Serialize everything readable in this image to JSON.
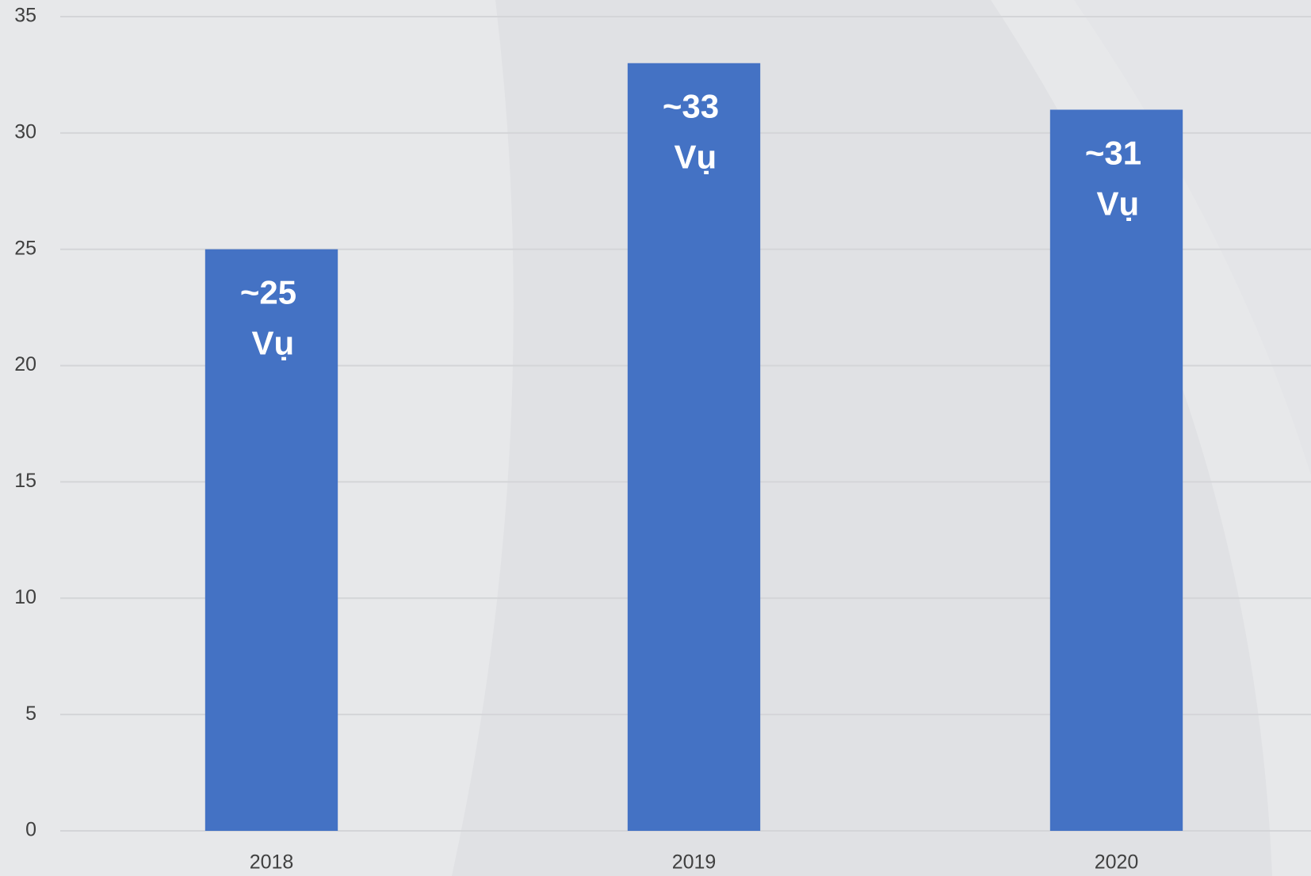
{
  "chart_data": {
    "type": "bar",
    "categories": [
      "2018",
      "2019",
      "2020"
    ],
    "values": [
      25,
      33,
      31
    ],
    "value_labels": [
      "~25 Vụ",
      "~33 Vụ",
      "~31 Vụ"
    ],
    "color": "#4472c4",
    "ylim": [
      0,
      35
    ],
    "yticks": [
      0,
      5,
      10,
      15,
      20,
      25,
      30,
      35
    ],
    "grid": true
  }
}
